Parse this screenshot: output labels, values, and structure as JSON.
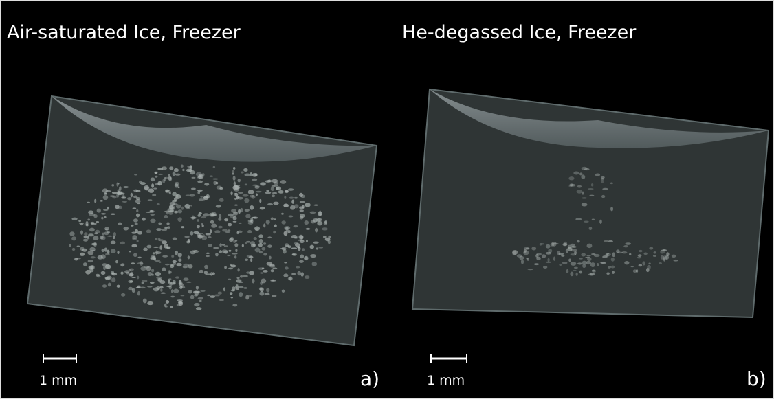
{
  "panels": [
    {
      "title": "Air-saturated Ice, Freezer",
      "scale_label": "1 mm",
      "panel_label": "a)"
    },
    {
      "title": "He-degassed Ice, Freezer",
      "scale_label": "1 mm",
      "panel_label": "b)"
    }
  ]
}
